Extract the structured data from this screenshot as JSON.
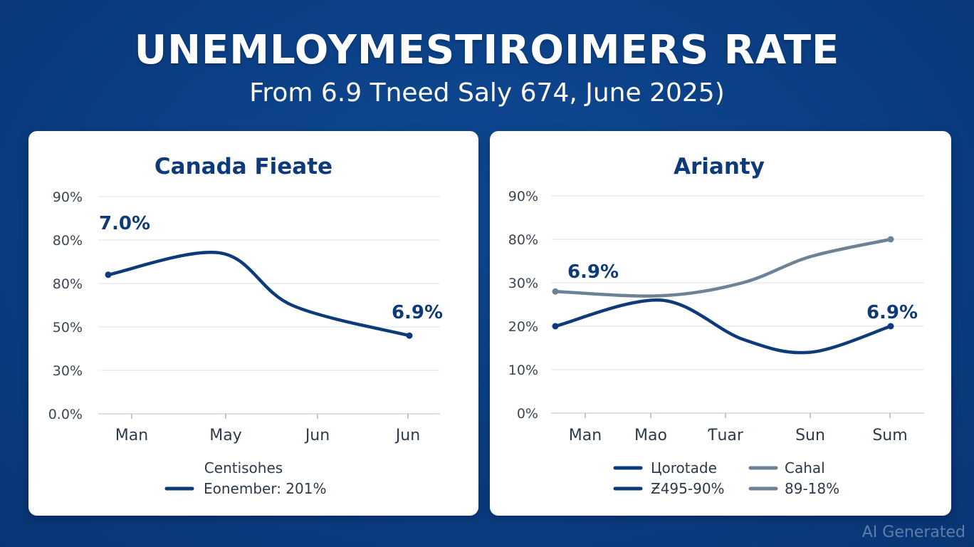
{
  "header": {
    "title": "UNEMLOYMESTIROIMERS RATE",
    "subtitle": "From 6.9 Tneed Saly 674, June 2025)"
  },
  "chart_data": [
    {
      "type": "line",
      "title": "Canada Fieate",
      "ytick_labels": [
        "90%",
        "80%",
        "80%",
        "50%",
        "30%",
        "0.0%"
      ],
      "xtick_labels": [
        "Man",
        "May",
        "Jun",
        "Jun"
      ],
      "series": [
        {
          "color": "#0d3b7a",
          "values": [
            3.2,
            3.7,
            2.5,
            1.8
          ]
        }
      ],
      "annotations": [
        {
          "text": "7.0%",
          "x_index": 0
        },
        {
          "text": "6.9%",
          "x_index": 3
        }
      ],
      "legend": {
        "position": "bottom",
        "title": "Centisohes",
        "entries": [
          {
            "label": "Eonember: 201%",
            "color": "#0d3b7a"
          }
        ]
      },
      "grid": true
    },
    {
      "type": "line",
      "title": "Arianty",
      "ytick_labels": [
        "90%",
        "80%",
        "30%",
        "20%",
        "10%",
        "0%"
      ],
      "xtick_labels": [
        "Man",
        "Mao",
        "Ƭuar",
        "Sun",
        "Sum"
      ],
      "series": [
        {
          "color": "#0d3b7a",
          "values": [
            2.0,
            2.6,
            1.7,
            1.4,
            2.0
          ]
        },
        {
          "color": "#6e8296",
          "values": [
            2.8,
            2.7,
            3.0,
            3.6,
            4.0
          ]
        }
      ],
      "annotations": [
        {
          "text": "6.9%",
          "x_index": 0
        },
        {
          "text": "6.9%",
          "x_index": 4
        }
      ],
      "legend": {
        "position": "bottom",
        "entries": [
          {
            "label": "Цorotade",
            "color": "#0d3b7a"
          },
          {
            "label": "Cahal",
            "color": "#6e8296"
          },
          {
            "label": "Ƶ495-90%",
            "color": "#0d3b7a"
          },
          {
            "label": "89-18%",
            "color": "#6e8296"
          }
        ]
      },
      "grid": true
    }
  ],
  "watermark": "AI Generated"
}
